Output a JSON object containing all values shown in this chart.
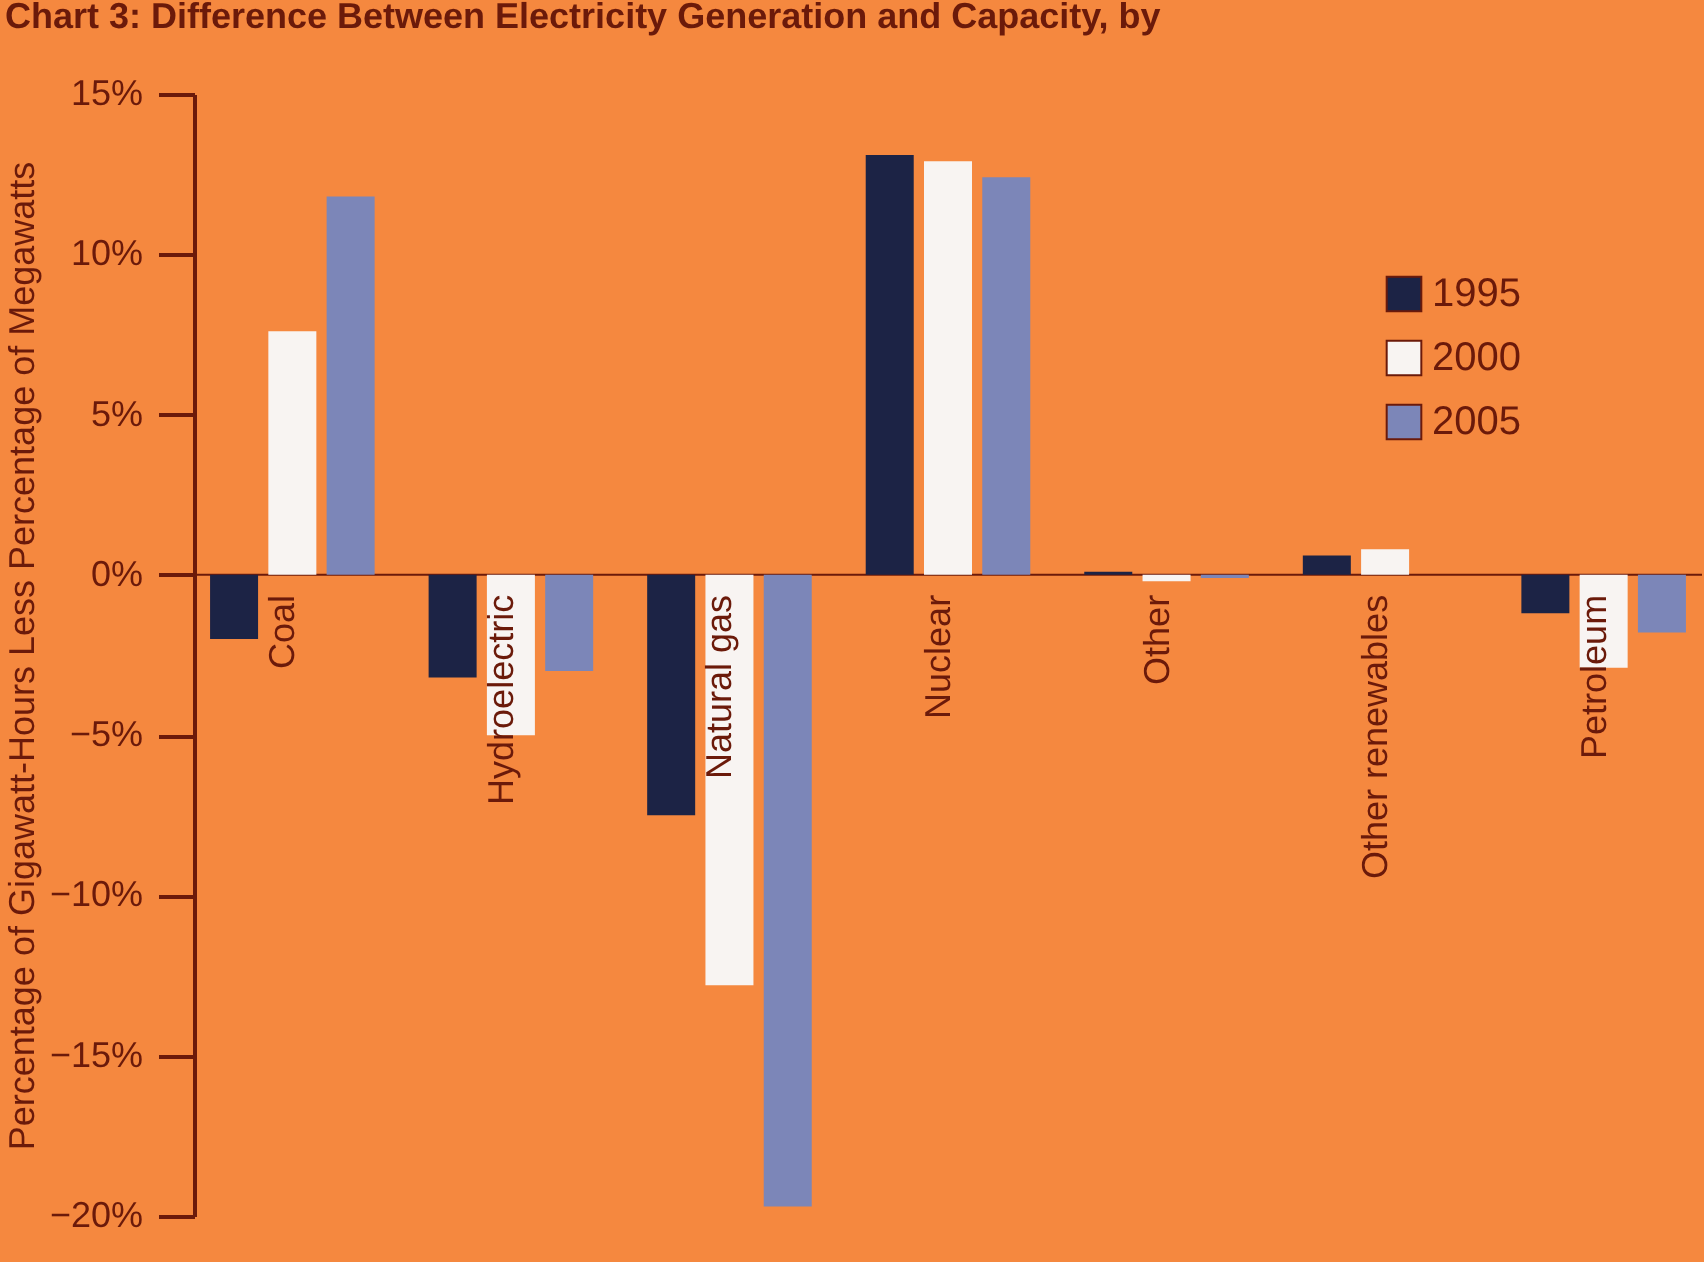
{
  "chart_data": {
    "type": "bar",
    "title": "Chart 3: Difference Between Electricity Generation and Capacity, by",
    "ylabel": "Percentage of Gigawatt-Hours Less Percentage of Megawatts",
    "categories": [
      "Coal",
      "Hydroelectric",
      "Natural gas",
      "Nuclear",
      "Other",
      "Other renewables",
      "Petroleum"
    ],
    "series": [
      {
        "name": "1995",
        "color": "#1c2345",
        "values": [
          -2.0,
          -3.2,
          -7.5,
          13.1,
          0.1,
          0.6,
          -1.2
        ]
      },
      {
        "name": "2000",
        "color": "#f8f4f2",
        "values": [
          7.6,
          -5.0,
          -12.8,
          12.9,
          -0.2,
          0.8,
          -2.9
        ]
      },
      {
        "name": "2005",
        "color": "#7c86b8",
        "values": [
          11.8,
          -3.0,
          -19.7,
          12.4,
          -0.1,
          0.0,
          -1.8
        ]
      }
    ],
    "ylim": [
      -20,
      15
    ],
    "yticks": [
      {
        "value": 15,
        "label": "15%"
      },
      {
        "value": 10,
        "label": "10%"
      },
      {
        "value": 5,
        "label": "5%"
      },
      {
        "value": 0,
        "label": "0%"
      },
      {
        "value": -5,
        "label": "−5%"
      },
      {
        "value": -10,
        "label": "−10%"
      },
      {
        "value": -15,
        "label": "−15%"
      },
      {
        "value": -20,
        "label": "−20%"
      }
    ],
    "legend": "top right",
    "grid": false
  }
}
